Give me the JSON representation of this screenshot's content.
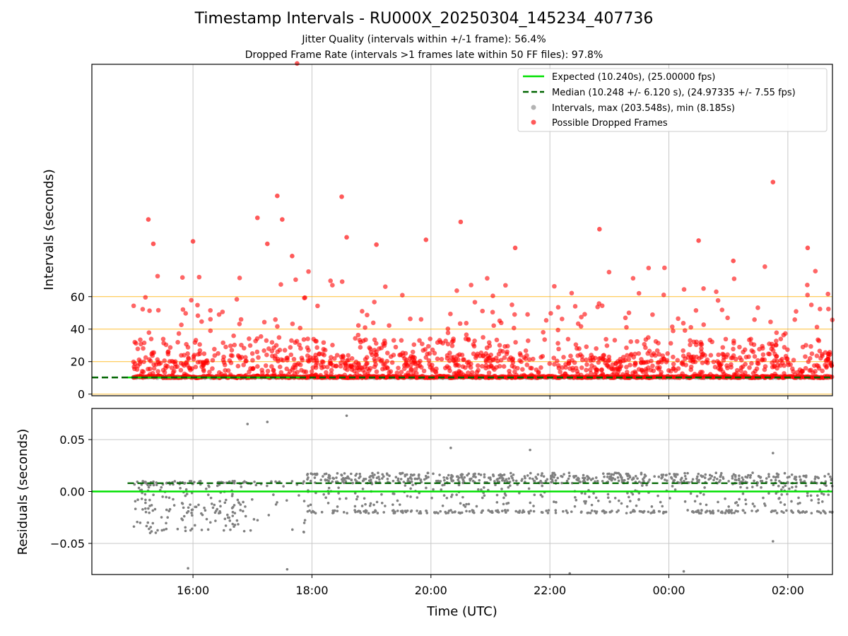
{
  "figure": {
    "title": "Timestamp Intervals - RU000X_20250304_145234_407736",
    "subtitle_1": "Jitter Quality (intervals within +/-1 frame): 56.4%",
    "subtitle_2": "Dropped Frame Rate (intervals >1 frames late within 50 FF files): 97.8%"
  },
  "colors": {
    "expected": "#00e000",
    "median": "#006400",
    "intervals": "#808080",
    "dropped": "#ff0000",
    "threshold": "#ffb000",
    "grid": "#c8c8c8"
  },
  "chart_data": [
    {
      "type": "scatter",
      "xlabel": "",
      "ylabel": "Intervals (seconds)",
      "x_range_hours": [
        14.3,
        26.75
      ],
      "ylim": [
        -1,
        203
      ],
      "yticks": [
        0,
        20,
        40,
        60
      ],
      "threshold_lines": [
        0,
        20,
        40,
        60
      ],
      "grid": true,
      "legend_position": "upper-right",
      "legend": [
        {
          "key": "expected",
          "label": "Expected (10.240s), (25.00000 fps)"
        },
        {
          "key": "median",
          "label": "Median (10.248 +/- 6.120 s), (24.97335 +/- 7.55 fps)"
        },
        {
          "key": "intervals",
          "label": "Intervals, max (203.548s), min (8.185s)"
        },
        {
          "key": "dropped",
          "label": "Possible Dropped Frames"
        }
      ],
      "expected_value": 10.24,
      "median_value": 10.248,
      "interval_max": 203.548,
      "interval_min": 8.185,
      "dropped_outliers": [
        {
          "x": "17:45",
          "y": 203.5
        },
        {
          "x": "01:45",
          "y": 130.5
        },
        {
          "x": "17:25",
          "y": 122.0
        },
        {
          "x": "18:30",
          "y": 121.5
        },
        {
          "x": "15:15",
          "y": 107.5
        },
        {
          "x": "17:05",
          "y": 108.5
        },
        {
          "x": "17:30",
          "y": 107.5
        },
        {
          "x": "20:30",
          "y": 106.0
        },
        {
          "x": "22:50",
          "y": 101.5
        },
        {
          "x": "18:35",
          "y": 96.5
        },
        {
          "x": "16:00",
          "y": 94.0
        },
        {
          "x": "19:05",
          "y": 92.0
        },
        {
          "x": "19:55",
          "y": 95.0
        },
        {
          "x": "21:25",
          "y": 90.0
        },
        {
          "x": "00:30",
          "y": 94.5
        },
        {
          "x": "02:20",
          "y": 90.0
        },
        {
          "x": "15:20",
          "y": 92.5
        },
        {
          "x": "17:15",
          "y": 92.5
        },
        {
          "x": "17:40",
          "y": 85.0
        },
        {
          "x": "01:05",
          "y": 82.0
        }
      ],
      "dropped_band": {
        "time_start": "15:00",
        "time_end": "02:45",
        "y_min": 10,
        "y_typical_max": 45
      }
    },
    {
      "type": "scatter",
      "xlabel": "Time (UTC)",
      "ylabel": "Residuals (seconds)",
      "x_range_hours": [
        14.3,
        26.75
      ],
      "ylim": [
        -0.08,
        0.08
      ],
      "yticks": [
        -0.05,
        0.0,
        0.05
      ],
      "ytick_labels": [
        "−0.05",
        "0.00",
        "0.05"
      ],
      "grid": true,
      "expected_residual": 0.0,
      "median_residual": 0.008,
      "outliers": [
        {
          "x": "16:55",
          "y": 0.065
        },
        {
          "x": "17:15",
          "y": 0.067
        },
        {
          "x": "18:35",
          "y": 0.073
        },
        {
          "x": "20:20",
          "y": 0.042
        },
        {
          "x": "21:40",
          "y": 0.04
        },
        {
          "x": "01:45",
          "y": 0.037
        },
        {
          "x": "15:55",
          "y": -0.074
        },
        {
          "x": "17:35",
          "y": -0.075
        },
        {
          "x": "22:20",
          "y": -0.079
        },
        {
          "x": "00:15",
          "y": -0.077
        },
        {
          "x": "01:45",
          "y": -0.048
        }
      ]
    }
  ],
  "xaxis": {
    "ticks": [
      {
        "hour": 16,
        "label": "16:00"
      },
      {
        "hour": 18,
        "label": "18:00"
      },
      {
        "hour": 20,
        "label": "20:00"
      },
      {
        "hour": 22,
        "label": "22:00"
      },
      {
        "hour": 24,
        "label": "00:00"
      },
      {
        "hour": 26,
        "label": "02:00"
      }
    ]
  }
}
